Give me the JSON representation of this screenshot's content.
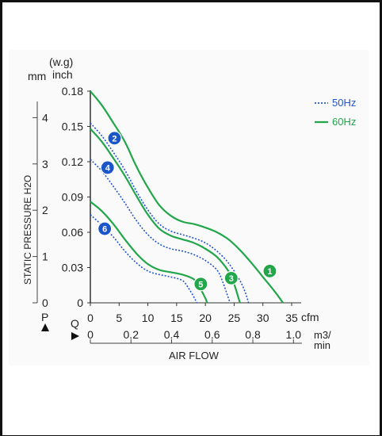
{
  "chart_data": {
    "type": "line",
    "xlabel": "AIR FLOW",
    "ylabel": "STATIC PRESSURE H2O",
    "y_units": {
      "wg_unit": "(w.g)",
      "mm_label": "mm",
      "inch_label": "inch",
      "p_marker": "P"
    },
    "x_units": {
      "cfm_label": "cfm",
      "m3_label": "m3/",
      "min_label": "min",
      "q_marker": "Q"
    },
    "xlim": [
      0,
      35
    ],
    "ylim": [
      0,
      0.18
    ],
    "x_ticks_cfm": [
      "0",
      "5",
      "10",
      "15",
      "20",
      "25",
      "30",
      "35"
    ],
    "x_ticks_m3min": [
      "0",
      "0.2",
      "0.4",
      "0.6",
      "0.8",
      "1.0"
    ],
    "y_ticks_inch": [
      "0",
      "0.03",
      "0.06",
      "0.09",
      "0.12",
      "0.15",
      "0.18"
    ],
    "y_ticks_mm": [
      "0",
      "1",
      "2",
      "3",
      "4"
    ],
    "legend": [
      {
        "label": "50Hz",
        "style": "dotted",
        "color": "#2255cc"
      },
      {
        "label": "60Hz",
        "style": "solid",
        "color": "#22a64a"
      }
    ],
    "legend_position": "top-right",
    "series": [
      {
        "marker": "1",
        "freq": "60Hz",
        "points": [
          [
            0,
            0.18
          ],
          [
            2,
            0.168
          ],
          [
            4,
            0.153
          ],
          [
            6,
            0.137
          ],
          [
            8,
            0.116
          ],
          [
            10,
            0.098
          ],
          [
            12,
            0.083
          ],
          [
            14,
            0.074
          ],
          [
            16,
            0.069
          ],
          [
            18,
            0.067
          ],
          [
            20,
            0.064
          ],
          [
            22,
            0.06
          ],
          [
            24,
            0.054
          ],
          [
            26,
            0.045
          ],
          [
            28,
            0.034
          ],
          [
            30,
            0.022
          ],
          [
            32,
            0.01
          ],
          [
            33.5,
            0
          ]
        ]
      },
      {
        "marker": "2",
        "freq": "50Hz",
        "points": [
          [
            0,
            0.153
          ],
          [
            2,
            0.142
          ],
          [
            4,
            0.128
          ],
          [
            6,
            0.113
          ],
          [
            8,
            0.095
          ],
          [
            10,
            0.079
          ],
          [
            12,
            0.067
          ],
          [
            14,
            0.061
          ],
          [
            16,
            0.058
          ],
          [
            18,
            0.055
          ],
          [
            20,
            0.051
          ],
          [
            22,
            0.044
          ],
          [
            24,
            0.034
          ],
          [
            26,
            0.019
          ],
          [
            27,
            0.008
          ],
          [
            27.5,
            0
          ]
        ]
      },
      {
        "marker": "3",
        "freq": "60Hz",
        "points": [
          [
            0,
            0.148
          ],
          [
            2,
            0.137
          ],
          [
            4,
            0.123
          ],
          [
            6,
            0.108
          ],
          [
            8,
            0.091
          ],
          [
            10,
            0.075
          ],
          [
            12,
            0.063
          ],
          [
            14,
            0.057
          ],
          [
            16,
            0.054
          ],
          [
            18,
            0.051
          ],
          [
            20,
            0.046
          ],
          [
            22,
            0.039
          ],
          [
            24,
            0.027
          ],
          [
            25,
            0.016
          ],
          [
            26,
            0
          ]
        ]
      },
      {
        "marker": "4",
        "freq": "50Hz",
        "points": [
          [
            0,
            0.122
          ],
          [
            2,
            0.112
          ],
          [
            4,
            0.099
          ],
          [
            6,
            0.085
          ],
          [
            8,
            0.07
          ],
          [
            10,
            0.058
          ],
          [
            12,
            0.05
          ],
          [
            14,
            0.046
          ],
          [
            16,
            0.044
          ],
          [
            18,
            0.041
          ],
          [
            20,
            0.036
          ],
          [
            22,
            0.028
          ],
          [
            23,
            0.018
          ],
          [
            24,
            0.004
          ],
          [
            24.3,
            0
          ]
        ]
      },
      {
        "marker": "5",
        "freq": "60Hz",
        "points": [
          [
            0,
            0.086
          ],
          [
            2,
            0.078
          ],
          [
            4,
            0.067
          ],
          [
            6,
            0.054
          ],
          [
            8,
            0.042
          ],
          [
            10,
            0.033
          ],
          [
            12,
            0.028
          ],
          [
            14,
            0.026
          ],
          [
            16,
            0.024
          ],
          [
            18,
            0.02
          ],
          [
            19,
            0.013
          ],
          [
            20,
            0.004
          ],
          [
            20.3,
            0
          ]
        ]
      },
      {
        "marker": "6",
        "freq": "50Hz",
        "points": [
          [
            0,
            0.075
          ],
          [
            2,
            0.066
          ],
          [
            4,
            0.056
          ],
          [
            6,
            0.044
          ],
          [
            8,
            0.034
          ],
          [
            10,
            0.027
          ],
          [
            12,
            0.024
          ],
          [
            14,
            0.022
          ],
          [
            16,
            0.019
          ],
          [
            17,
            0.013
          ],
          [
            18,
            0.005
          ],
          [
            18.5,
            0
          ]
        ]
      }
    ],
    "marker_positions": [
      {
        "label": "1",
        "x": 31.2,
        "y": 0.027,
        "color": "#22a64a"
      },
      {
        "label": "2",
        "x": 4.2,
        "y": 0.14,
        "color": "#1a56c8"
      },
      {
        "label": "3",
        "x": 24.5,
        "y": 0.021,
        "color": "#22a64a"
      },
      {
        "label": "4",
        "x": 3.0,
        "y": 0.115,
        "color": "#1a56c8"
      },
      {
        "label": "5",
        "x": 19.2,
        "y": 0.016,
        "color": "#22a64a"
      },
      {
        "label": "6",
        "x": 2.5,
        "y": 0.063,
        "color": "#1a56c8"
      }
    ]
  }
}
